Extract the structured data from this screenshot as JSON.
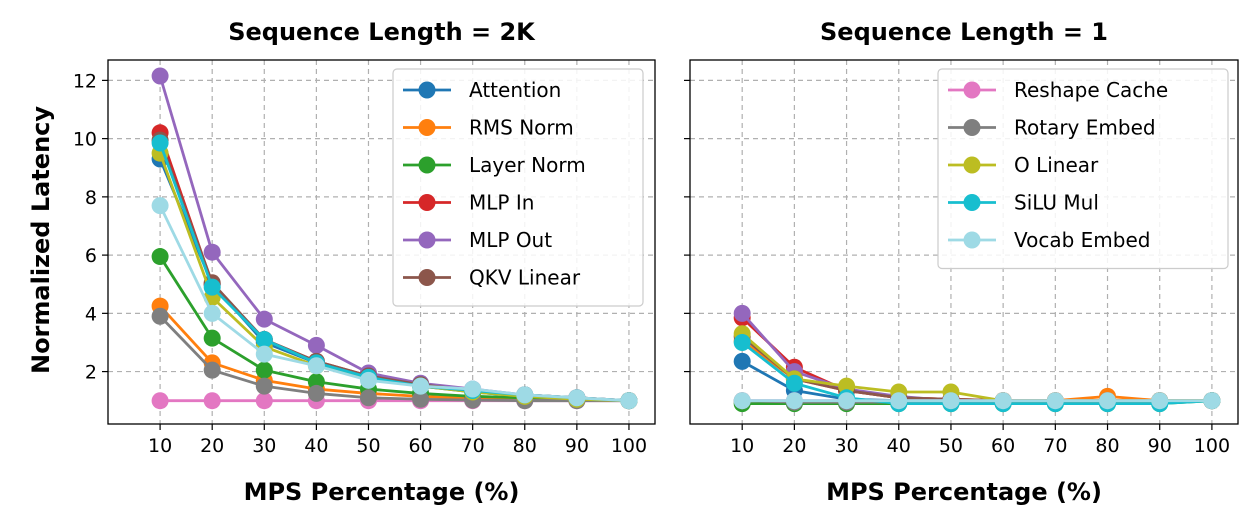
{
  "ylabel": "Normalized Latency",
  "colors": {
    "Attention": "#1f77b4",
    "RMS Norm": "#ff7f0e",
    "Layer Norm": "#2ca02c",
    "MLP In": "#d62728",
    "MLP Out": "#9467bd",
    "QKV Linear": "#8c564b",
    "Reshape Cache": "#e377c2",
    "Rotary Embed": "#7f7f7f",
    "O Linear": "#bcbd22",
    "SiLU Mul": "#17becf",
    "Vocab Embed": "#9edae5"
  },
  "chart_data": [
    {
      "type": "line",
      "title": "Sequence Length = 2K",
      "xlabel": "MPS Percentage (%)",
      "ylabel": "Normalized Latency",
      "x": [
        10,
        20,
        30,
        40,
        50,
        60,
        70,
        80,
        90,
        100
      ],
      "xlim": [
        0,
        105
      ],
      "ylim": [
        0.2,
        12.7
      ],
      "yticks": [
        2,
        4,
        6,
        8,
        10,
        12
      ],
      "grid": true,
      "legend_position": "top-right",
      "legend": [
        "Attention",
        "RMS Norm",
        "Layer Norm",
        "MLP In",
        "MLP Out",
        "QKV Linear"
      ],
      "series": [
        {
          "name": "Attention",
          "values": [
            9.3,
            5.0,
            3.0,
            2.3,
            1.8,
            1.5,
            1.3,
            1.15,
            1.05,
            1.0
          ]
        },
        {
          "name": "RMS Norm",
          "values": [
            4.25,
            2.3,
            1.7,
            1.4,
            1.25,
            1.15,
            1.08,
            1.05,
            1.02,
            1.0
          ]
        },
        {
          "name": "Layer Norm",
          "values": [
            5.95,
            3.15,
            2.05,
            1.65,
            1.4,
            1.25,
            1.15,
            1.1,
            1.05,
            1.0
          ]
        },
        {
          "name": "MLP In",
          "values": [
            10.2,
            5.0,
            3.1,
            2.35,
            1.85,
            1.55,
            1.35,
            1.2,
            1.1,
            1.0
          ]
        },
        {
          "name": "MLP Out",
          "values": [
            12.15,
            6.1,
            3.8,
            2.9,
            1.95,
            1.6,
            1.4,
            1.2,
            1.1,
            1.0
          ]
        },
        {
          "name": "QKV Linear",
          "values": [
            9.95,
            5.05,
            3.1,
            2.35,
            1.85,
            1.55,
            1.35,
            1.2,
            1.1,
            1.0
          ]
        },
        {
          "name": "Reshape Cache",
          "values": [
            1.0,
            1.0,
            1.0,
            1.0,
            1.0,
            1.0,
            1.0,
            1.0,
            1.0,
            1.0
          ]
        },
        {
          "name": "Rotary Embed",
          "values": [
            3.9,
            2.05,
            1.5,
            1.25,
            1.1,
            1.05,
            1.02,
            1.0,
            1.0,
            1.0
          ]
        },
        {
          "name": "O Linear",
          "values": [
            9.5,
            4.55,
            2.85,
            2.2,
            1.75,
            1.5,
            1.3,
            1.15,
            1.05,
            1.0
          ]
        },
        {
          "name": "SiLU Mul",
          "values": [
            9.85,
            4.9,
            3.1,
            2.3,
            1.8,
            1.5,
            1.35,
            1.2,
            1.1,
            1.0
          ]
        },
        {
          "name": "Vocab Embed",
          "values": [
            7.7,
            4.0,
            2.6,
            2.2,
            1.7,
            1.5,
            1.4,
            1.2,
            1.1,
            1.0
          ]
        }
      ]
    },
    {
      "type": "line",
      "title": "Sequence Length = 1",
      "xlabel": "MPS Percentage (%)",
      "x": [
        10,
        20,
        30,
        40,
        50,
        60,
        70,
        80,
        90,
        100
      ],
      "xlim": [
        0,
        105
      ],
      "ylim": [
        0.2,
        12.7
      ],
      "yticks": [
        2,
        4,
        6,
        8,
        10,
        12
      ],
      "grid": true,
      "legend_position": "top-right",
      "legend": [
        "Reshape Cache",
        "Rotary Embed",
        "O Linear",
        "SiLU Mul",
        "Vocab Embed"
      ],
      "series": [
        {
          "name": "Attention",
          "values": [
            2.35,
            1.35,
            1.05,
            1.0,
            1.0,
            1.0,
            1.0,
            1.0,
            1.0,
            1.0
          ]
        },
        {
          "name": "RMS Norm",
          "values": [
            3.05,
            1.75,
            1.35,
            1.1,
            1.05,
            1.0,
            1.0,
            1.15,
            1.0,
            1.0
          ]
        },
        {
          "name": "Layer Norm",
          "values": [
            0.9,
            0.9,
            0.9,
            0.9,
            0.9,
            0.9,
            0.9,
            0.9,
            0.9,
            1.0
          ]
        },
        {
          "name": "MLP In",
          "values": [
            3.85,
            2.15,
            1.35,
            1.1,
            1.05,
            1.0,
            1.0,
            1.0,
            1.0,
            1.0
          ]
        },
        {
          "name": "MLP Out",
          "values": [
            4.0,
            2.0,
            1.4,
            1.15,
            1.0,
            1.0,
            1.0,
            1.0,
            1.0,
            1.0
          ]
        },
        {
          "name": "QKV Linear",
          "values": [
            3.2,
            1.75,
            1.35,
            1.1,
            1.05,
            1.0,
            1.0,
            1.0,
            1.0,
            1.0
          ]
        },
        {
          "name": "Reshape Cache",
          "values": [
            1.0,
            1.0,
            1.0,
            1.0,
            1.0,
            1.0,
            1.0,
            1.0,
            1.0,
            1.0
          ]
        },
        {
          "name": "Rotary Embed",
          "values": [
            1.0,
            0.95,
            0.95,
            0.95,
            0.95,
            0.95,
            0.95,
            0.95,
            1.0,
            1.0
          ]
        },
        {
          "name": "O Linear",
          "values": [
            3.3,
            1.75,
            1.5,
            1.3,
            1.3,
            1.0,
            1.0,
            1.0,
            1.0,
            1.0
          ]
        },
        {
          "name": "SiLU Mul",
          "values": [
            3.0,
            1.6,
            1.1,
            0.9,
            0.9,
            0.9,
            0.9,
            0.9,
            0.9,
            1.0
          ]
        },
        {
          "name": "Vocab Embed",
          "values": [
            1.0,
            1.0,
            1.0,
            1.0,
            1.0,
            1.0,
            1.0,
            1.0,
            1.0,
            1.0
          ]
        }
      ]
    }
  ]
}
